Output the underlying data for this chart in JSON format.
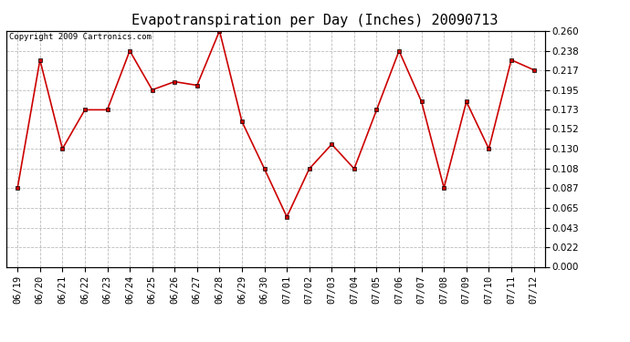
{
  "title": "Evapotranspiration per Day (Inches) 20090713",
  "copyright_text": "Copyright 2009 Cartronics.com",
  "dates": [
    "06/19",
    "06/20",
    "06/21",
    "06/22",
    "06/23",
    "06/24",
    "06/25",
    "06/26",
    "06/27",
    "06/28",
    "06/29",
    "06/30",
    "07/01",
    "07/02",
    "07/03",
    "07/04",
    "07/05",
    "07/06",
    "07/07",
    "07/08",
    "07/09",
    "07/10",
    "07/11",
    "07/12"
  ],
  "values": [
    0.087,
    0.228,
    0.13,
    0.173,
    0.173,
    0.238,
    0.195,
    0.204,
    0.2,
    0.26,
    0.16,
    0.108,
    0.055,
    0.108,
    0.135,
    0.108,
    0.173,
    0.238,
    0.182,
    0.087,
    0.182,
    0.13,
    0.228,
    0.217
  ],
  "line_color": "#cc0000",
  "marker": "s",
  "marker_size": 2.5,
  "marker_color": "#cc0000",
  "background_color": "#ffffff",
  "plot_bg_color": "#ffffff",
  "grid_color": "#bbbbbb",
  "grid_linestyle": "--",
  "ylim": [
    0.0,
    0.26
  ],
  "yticks": [
    0.0,
    0.022,
    0.043,
    0.065,
    0.087,
    0.108,
    0.13,
    0.152,
    0.173,
    0.195,
    0.217,
    0.238,
    0.26
  ],
  "title_fontsize": 11,
  "tick_fontsize": 7.5,
  "copyright_fontsize": 6.5
}
